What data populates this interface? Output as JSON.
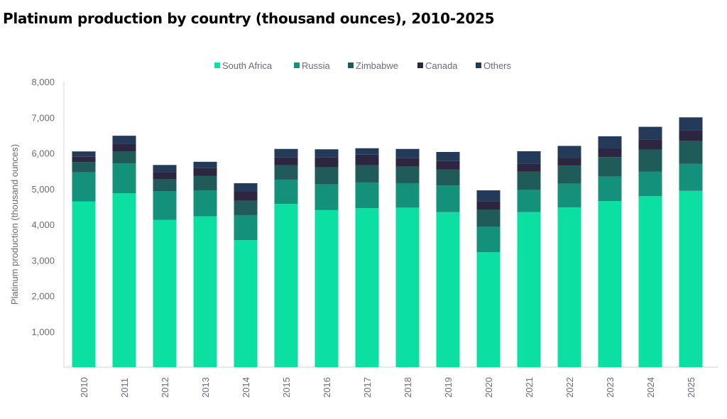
{
  "chart_data": {
    "type": "bar",
    "stacked": true,
    "title": "Platinum production by country (thousand ounces), 2010-2025",
    "xlabel": "",
    "ylabel": "Platinum production (thousand ounces)",
    "ylim": [
      0,
      8000
    ],
    "yticks": [
      "1,000",
      "2,000",
      "3,000",
      "4,000",
      "5,000",
      "6,000",
      "7,000",
      "8,000"
    ],
    "ytick_values": [
      1000,
      2000,
      3000,
      4000,
      5000,
      6000,
      7000,
      8000
    ],
    "legend_position": "top-center",
    "categories": [
      "2010",
      "2011",
      "2012",
      "2013",
      "2014",
      "2015",
      "2016",
      "2017",
      "2018",
      "2019",
      "2020",
      "2021",
      "2022",
      "2023",
      "2024",
      "2025"
    ],
    "series": [
      {
        "name": "South Africa",
        "color": "#0be0a2",
        "values": [
          4640,
          4870,
          4125,
          4225,
          3560,
          4575,
          4400,
          4455,
          4470,
          4345,
          3220,
          4345,
          4475,
          4655,
          4790,
          4940
        ]
      },
      {
        "name": "Russia",
        "color": "#14917a",
        "values": [
          820,
          835,
          810,
          730,
          700,
          680,
          720,
          720,
          685,
          745,
          720,
          630,
          665,
          685,
          685,
          755
        ]
      },
      {
        "name": "Zimbabwe",
        "color": "#1f5b58",
        "values": [
          290,
          345,
          330,
          400,
          400,
          400,
          480,
          480,
          465,
          445,
          470,
          500,
          510,
          545,
          625,
          640
        ]
      },
      {
        "name": "Canada",
        "color": "#2c2640",
        "values": [
          145,
          210,
          200,
          220,
          265,
          230,
          285,
          300,
          245,
          240,
          235,
          230,
          210,
          245,
          285,
          300
        ]
      },
      {
        "name": "Others",
        "color": "#233a58",
        "values": [
          150,
          225,
          200,
          180,
          230,
          230,
          220,
          180,
          250,
          255,
          310,
          345,
          340,
          340,
          350,
          365
        ]
      }
    ]
  }
}
